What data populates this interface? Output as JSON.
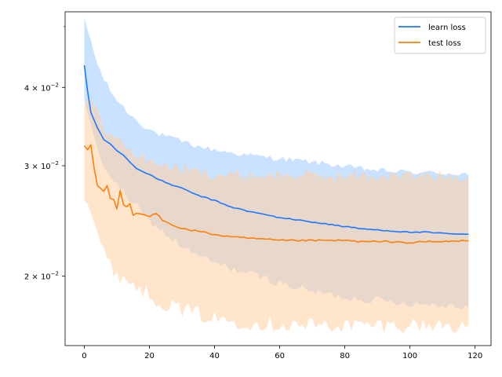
{
  "chart_data": {
    "type": "line",
    "y_scale": "log",
    "xlim": [
      -5.9,
      124.9
    ],
    "ylim": [
      0.0155,
      0.0528
    ],
    "x_ticks": [
      {
        "value": 0,
        "label": "0"
      },
      {
        "value": 20,
        "label": "20"
      },
      {
        "value": 40,
        "label": "40"
      },
      {
        "value": 60,
        "label": "60"
      },
      {
        "value": 80,
        "label": "80"
      },
      {
        "value": 100,
        "label": "100"
      },
      {
        "value": 120,
        "label": "120"
      }
    ],
    "y_ticks": [
      {
        "value": 0.02,
        "label_base": "2",
        "label_times": "×",
        "label_power_base": "10",
        "label_exp": "−2"
      },
      {
        "value": 0.03,
        "label_base": "3",
        "label_times": "×",
        "label_power_base": "10",
        "label_exp": "−2"
      },
      {
        "value": 0.04,
        "label_base": "4",
        "label_times": "×",
        "label_power_base": "10",
        "label_exp": "−2"
      }
    ],
    "y_minor_ticks": [
      0.05
    ],
    "legend_position": "top-right",
    "x_range": [
      0,
      118
    ],
    "series": [
      {
        "name": "learn loss",
        "color": "#1f77ff",
        "band_color": "#9ccaff",
        "mean_anchors": [
          [
            0,
            0.0434
          ],
          [
            1,
            0.0395
          ],
          [
            2,
            0.0365
          ],
          [
            4,
            0.0345
          ],
          [
            6,
            0.033
          ],
          [
            8,
            0.0325
          ],
          [
            10,
            0.0317
          ],
          [
            12,
            0.0312
          ],
          [
            14,
            0.0304
          ],
          [
            16,
            0.0297
          ],
          [
            20,
            0.029
          ],
          [
            25,
            0.0282
          ],
          [
            30,
            0.0276
          ],
          [
            35,
            0.0269
          ],
          [
            40,
            0.0264
          ],
          [
            45,
            0.0258
          ],
          [
            50,
            0.0254
          ],
          [
            55,
            0.0251
          ],
          [
            60,
            0.0248
          ],
          [
            65,
            0.0246
          ],
          [
            70,
            0.0244
          ],
          [
            75,
            0.0242
          ],
          [
            80,
            0.024
          ],
          [
            85,
            0.0238
          ],
          [
            90,
            0.0237
          ],
          [
            95,
            0.0236
          ],
          [
            100,
            0.0235
          ],
          [
            105,
            0.0235
          ],
          [
            110,
            0.0234
          ],
          [
            118,
            0.0233
          ]
        ],
        "upper_anchors": [
          [
            0,
            0.0512
          ],
          [
            2,
            0.0475
          ],
          [
            4,
            0.0435
          ],
          [
            6,
            0.0412
          ],
          [
            8,
            0.0395
          ],
          [
            10,
            0.0382
          ],
          [
            14,
            0.0362
          ],
          [
            18,
            0.0348
          ],
          [
            22,
            0.0338
          ],
          [
            26,
            0.0333
          ],
          [
            30,
            0.0328
          ],
          [
            35,
            0.0322
          ],
          [
            40,
            0.0318
          ],
          [
            45,
            0.0315
          ],
          [
            50,
            0.0312
          ],
          [
            55,
            0.031
          ],
          [
            60,
            0.0308
          ],
          [
            65,
            0.0306
          ],
          [
            70,
            0.0304
          ],
          [
            75,
            0.0302
          ],
          [
            80,
            0.0299
          ],
          [
            85,
            0.0297
          ],
          [
            90,
            0.0295
          ],
          [
            95,
            0.0294
          ],
          [
            100,
            0.0293
          ],
          [
            110,
            0.0292
          ],
          [
            118,
            0.0291
          ]
        ],
        "lower_anchors": [
          [
            0,
            0.0376
          ],
          [
            2,
            0.0345
          ],
          [
            4,
            0.0318
          ],
          [
            6,
            0.0301
          ],
          [
            8,
            0.0289
          ],
          [
            10,
            0.0279
          ],
          [
            14,
            0.0265
          ],
          [
            18,
            0.0251
          ],
          [
            22,
            0.024
          ],
          [
            26,
            0.0231
          ],
          [
            30,
            0.0223
          ],
          [
            35,
            0.0215
          ],
          [
            40,
            0.021
          ],
          [
            45,
            0.0206
          ],
          [
            50,
            0.0202
          ],
          [
            55,
            0.0199
          ],
          [
            60,
            0.0195
          ],
          [
            65,
            0.0192
          ],
          [
            70,
            0.0189
          ],
          [
            75,
            0.0187
          ],
          [
            80,
            0.0185
          ],
          [
            85,
            0.0184
          ],
          [
            90,
            0.0183
          ],
          [
            95,
            0.0182
          ],
          [
            100,
            0.0181
          ],
          [
            110,
            0.018
          ],
          [
            118,
            0.0179
          ]
        ]
      },
      {
        "name": "test loss",
        "color": "#ff7f0e",
        "band_color": "#ffcfa0",
        "mean_anchors": [
          [
            0,
            0.0323
          ],
          [
            1,
            0.0318
          ],
          [
            2,
            0.0324
          ],
          [
            3,
            0.0298
          ],
          [
            4,
            0.0279
          ],
          [
            5,
            0.0276
          ],
          [
            6,
            0.0273
          ],
          [
            7,
            0.0279
          ],
          [
            8,
            0.0266
          ],
          [
            9,
            0.0265
          ],
          [
            10,
            0.0256
          ],
          [
            11,
            0.0274
          ],
          [
            12,
            0.026
          ],
          [
            13,
            0.0258
          ],
          [
            14,
            0.0261
          ],
          [
            15,
            0.025
          ],
          [
            16,
            0.0252
          ],
          [
            18,
            0.0251
          ],
          [
            20,
            0.0249
          ],
          [
            22,
            0.0252
          ],
          [
            24,
            0.0246
          ],
          [
            26,
            0.0243
          ],
          [
            30,
            0.0238
          ],
          [
            35,
            0.0236
          ],
          [
            40,
            0.0233
          ],
          [
            45,
            0.0231
          ],
          [
            50,
            0.023
          ],
          [
            55,
            0.0229
          ],
          [
            60,
            0.0228
          ],
          [
            65,
            0.0228
          ],
          [
            70,
            0.0228
          ],
          [
            75,
            0.0228
          ],
          [
            80,
            0.0228
          ],
          [
            85,
            0.0227
          ],
          [
            90,
            0.0227
          ],
          [
            95,
            0.0227
          ],
          [
            100,
            0.0226
          ],
          [
            105,
            0.0227
          ],
          [
            110,
            0.0227
          ],
          [
            118,
            0.0228
          ]
        ],
        "upper_anchors": [
          [
            0,
            0.0375
          ],
          [
            2,
            0.0382
          ],
          [
            4,
            0.0362
          ],
          [
            6,
            0.0348
          ],
          [
            8,
            0.0336
          ],
          [
            10,
            0.033
          ],
          [
            12,
            0.0323
          ],
          [
            16,
            0.0312
          ],
          [
            20,
            0.0306
          ],
          [
            25,
            0.03
          ],
          [
            30,
            0.0296
          ],
          [
            35,
            0.0293
          ],
          [
            40,
            0.0291
          ],
          [
            45,
            0.029
          ],
          [
            50,
            0.029
          ],
          [
            55,
            0.029
          ],
          [
            60,
            0.029
          ],
          [
            65,
            0.029
          ],
          [
            70,
            0.0289
          ],
          [
            75,
            0.0289
          ],
          [
            80,
            0.0289
          ],
          [
            90,
            0.0289
          ],
          [
            100,
            0.0289
          ],
          [
            110,
            0.0289
          ],
          [
            118,
            0.0289
          ]
        ],
        "lower_anchors": [
          [
            0,
            0.0272
          ],
          [
            2,
            0.0255
          ],
          [
            4,
            0.0235
          ],
          [
            6,
            0.0218
          ],
          [
            8,
            0.0207
          ],
          [
            10,
            0.0202
          ],
          [
            14,
            0.0196
          ],
          [
            18,
            0.019
          ],
          [
            22,
            0.0184
          ],
          [
            26,
            0.018
          ],
          [
            30,
            0.0177
          ],
          [
            35,
            0.0174
          ],
          [
            40,
            0.0171
          ],
          [
            45,
            0.017
          ],
          [
            50,
            0.0169
          ],
          [
            55,
            0.0168
          ],
          [
            60,
            0.0168
          ],
          [
            65,
            0.0167
          ],
          [
            70,
            0.0167
          ],
          [
            80,
            0.0167
          ],
          [
            90,
            0.0167
          ],
          [
            100,
            0.0167
          ],
          [
            110,
            0.0167
          ],
          [
            118,
            0.0167
          ]
        ]
      }
    ]
  }
}
